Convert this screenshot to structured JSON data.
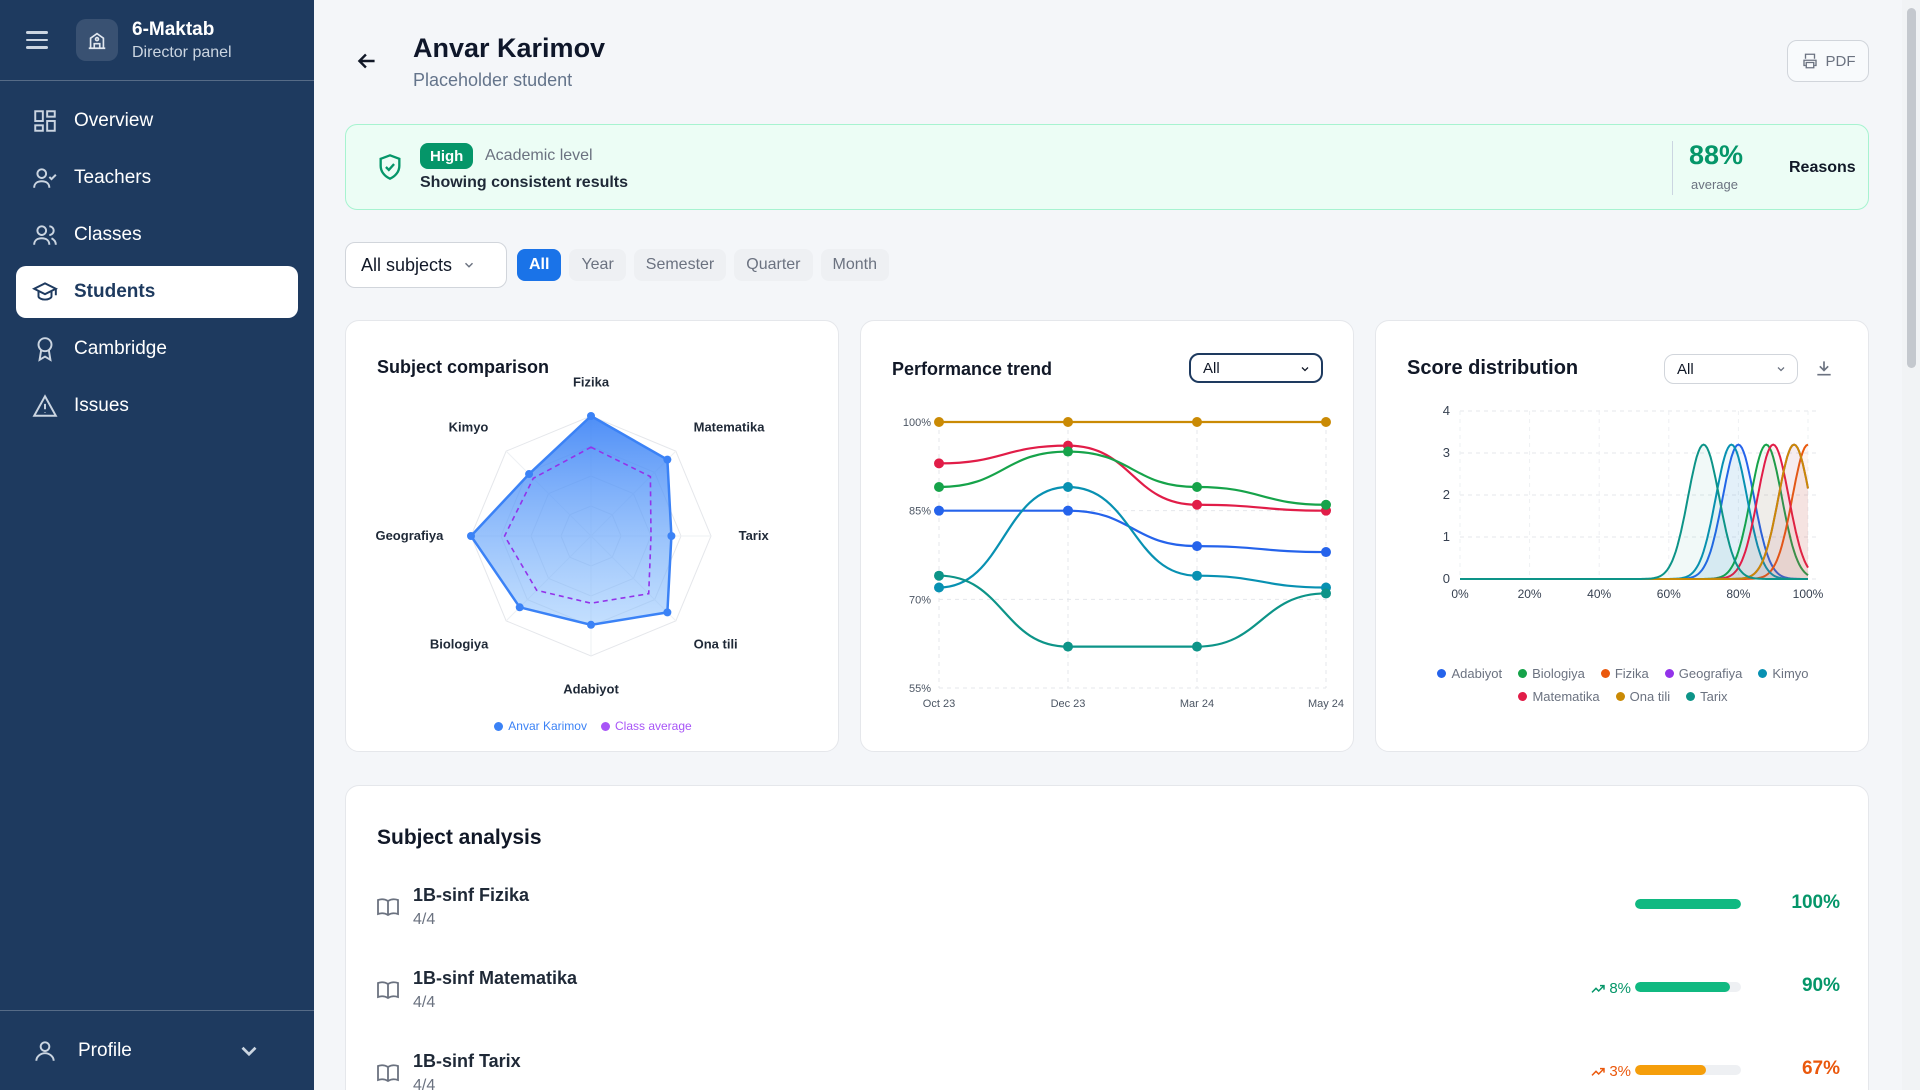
{
  "sidebar": {
    "school_name": "6-Maktab",
    "panel_label": "Director panel",
    "items": [
      {
        "label": "Overview",
        "icon": "dashboard-icon"
      },
      {
        "label": "Teachers",
        "icon": "teacher-icon"
      },
      {
        "label": "Classes",
        "icon": "users-icon"
      },
      {
        "label": "Students",
        "icon": "graduation-cap-icon",
        "active": true
      },
      {
        "label": "Cambridge",
        "icon": "award-icon"
      },
      {
        "label": "Issues",
        "icon": "warning-icon"
      }
    ],
    "profile_label": "Profile"
  },
  "header": {
    "student_name": "Anvar Karimov",
    "student_subtitle": "Placeholder student",
    "pdf_label": "PDF"
  },
  "banner": {
    "level_badge": "High",
    "level_label": "Academic level",
    "message": "Showing consistent results",
    "average_value": "88%",
    "average_label": "average",
    "reasons_label": "Reasons"
  },
  "filters": {
    "subject_select": "All subjects",
    "periods": [
      "All",
      "Year",
      "Semester",
      "Quarter",
      "Month"
    ],
    "active_period": "All"
  },
  "radar": {
    "title": "Subject comparison",
    "legend": [
      "Anvar Karimov",
      "Class average"
    ]
  },
  "trend": {
    "title": "Performance trend",
    "select_value": "All"
  },
  "distribution": {
    "title": "Score distribution",
    "select_value": "All"
  },
  "chart_data": [
    {
      "type": "radar",
      "title": "Subject comparison",
      "categories": [
        "Fizika",
        "Matematika",
        "Tarix",
        "Ona tili",
        "Adabiyot",
        "Biologiya",
        "Geografiya",
        "Kimyo"
      ],
      "series": [
        {
          "name": "Anvar Karimov",
          "values": [
            100,
            90,
            67,
            90,
            74,
            84,
            100,
            73
          ],
          "color": "#3b82f6"
        },
        {
          "name": "Class average",
          "values": [
            74,
            70,
            50,
            68,
            56,
            64,
            72,
            68
          ],
          "color": "#a855f7"
        }
      ],
      "range": [
        0,
        100
      ]
    },
    {
      "type": "line",
      "title": "Performance trend",
      "x": [
        "Oct 23",
        "Dec 23",
        "Mar 24",
        "May 24"
      ],
      "yticks": [
        "100%",
        "85%",
        "70%",
        "55%"
      ],
      "ylim": [
        55,
        100
      ],
      "series": [
        {
          "color": "#ca8a04",
          "values": [
            100,
            100,
            100,
            100
          ]
        },
        {
          "color": "#e11d48",
          "values": [
            93,
            96,
            86,
            85
          ]
        },
        {
          "color": "#16a34a",
          "values": [
            89,
            95,
            89,
            86
          ]
        },
        {
          "color": "#2563eb",
          "values": [
            85,
            85,
            79,
            78
          ]
        },
        {
          "color": "#0891b2",
          "values": [
            72,
            89,
            74,
            72
          ]
        },
        {
          "color": "#0d9488",
          "values": [
            74,
            62,
            62,
            71
          ]
        }
      ]
    },
    {
      "type": "area",
      "title": "Score distribution",
      "xticks": [
        "0%",
        "20%",
        "40%",
        "60%",
        "80%",
        "100%"
      ],
      "yticks": [
        "4",
        "3",
        "2",
        "1",
        "0"
      ],
      "xlim": [
        0,
        100
      ],
      "ylim": [
        0,
        4
      ],
      "series": [
        {
          "name": "Adabiyot",
          "color": "#2563eb",
          "peak_x": 80,
          "peak_y": 3.2
        },
        {
          "name": "Biologiya",
          "color": "#16a34a",
          "peak_x": 88,
          "peak_y": 3.2
        },
        {
          "name": "Fizika",
          "color": "#ea580c",
          "peak_x": 100,
          "peak_y": 3.2
        },
        {
          "name": "Geografiya",
          "color": "#9333ea",
          "peak_x": 96,
          "peak_y": 3.2
        },
        {
          "name": "Kimyo",
          "color": "#0891b2",
          "peak_x": 78,
          "peak_y": 3.2
        },
        {
          "name": "Matematika",
          "color": "#e11d48",
          "peak_x": 90,
          "peak_y": 3.2
        },
        {
          "name": "Ona tili",
          "color": "#ca8a04",
          "peak_x": 96,
          "peak_y": 3.2
        },
        {
          "name": "Tarix",
          "color": "#0d9488",
          "peak_x": 70,
          "peak_y": 3.2
        }
      ]
    }
  ],
  "analysis": {
    "title": "Subject analysis",
    "rows": [
      {
        "name": "1B-sinf Fizika",
        "fraction": "4/4",
        "trend": "",
        "percent": "100%",
        "value": 100,
        "color": "#10b981",
        "text_color": "#059669"
      },
      {
        "name": "1B-sinf Matematika",
        "fraction": "4/4",
        "trend": "8%",
        "percent": "90%",
        "value": 90,
        "color": "#10b981",
        "text_color": "#059669"
      },
      {
        "name": "1B-sinf Tarix",
        "fraction": "4/4",
        "trend": "3%",
        "percent": "67%",
        "value": 67,
        "color": "#f59e0b",
        "text_color": "#ea580c"
      }
    ]
  }
}
